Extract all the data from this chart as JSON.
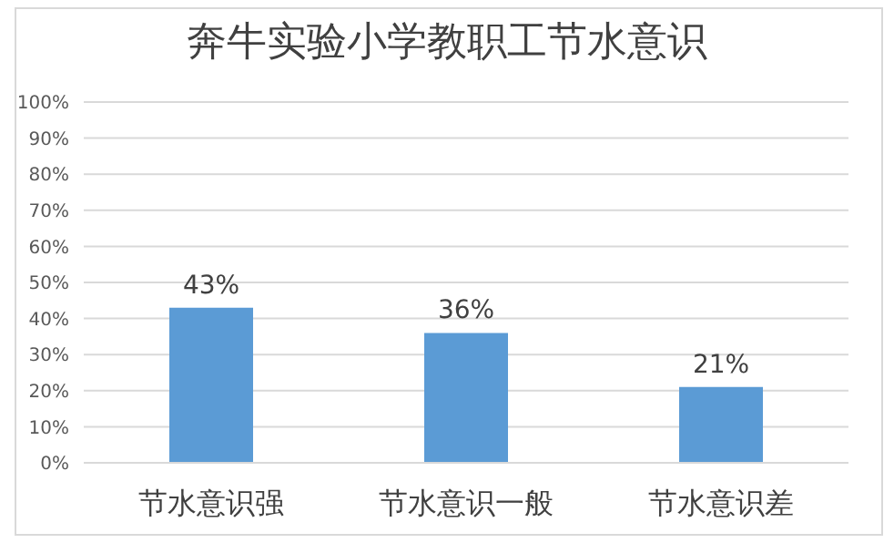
{
  "chart_data": {
    "type": "bar",
    "title": "奔牛实验小学教职工节水意识",
    "categories": [
      "节水意识强",
      "节水意识一般",
      "节水意识差"
    ],
    "values": [
      43,
      36,
      21
    ],
    "color": "#5b9bd5",
    "value_labels": [
      "43%",
      "36%",
      "21%"
    ],
    "ylim": [
      0,
      100
    ],
    "yticks": [
      {
        "value": 0,
        "label": "0%"
      },
      {
        "value": 10,
        "label": "10%"
      },
      {
        "value": 20,
        "label": "20%"
      },
      {
        "value": 30,
        "label": "30%"
      },
      {
        "value": 40,
        "label": "40%"
      },
      {
        "value": 50,
        "label": "50%"
      },
      {
        "value": 60,
        "label": "60%"
      },
      {
        "value": 70,
        "label": "70%"
      },
      {
        "value": 80,
        "label": "80%"
      },
      {
        "value": 90,
        "label": "90%"
      },
      {
        "value": 100,
        "label": "100%"
      }
    ],
    "grid": "y",
    "legend": false
  }
}
